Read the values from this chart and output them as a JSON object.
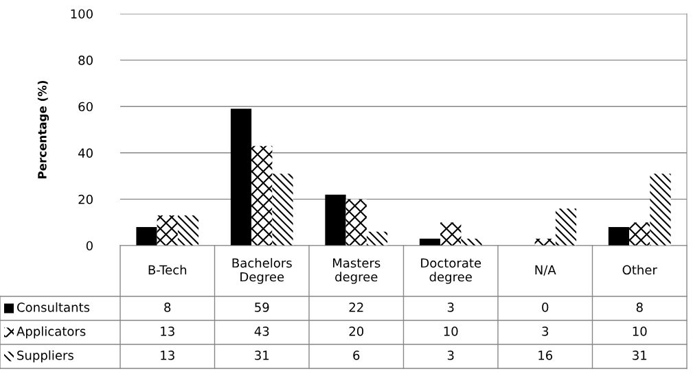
{
  "chart_data": {
    "type": "bar",
    "ylabel": "Percentage (%)",
    "categories": [
      "B-Tech",
      "Bachelors\nDegree",
      "Masters\ndegree",
      "Doctorate\ndegree",
      "N/A",
      "Other"
    ],
    "series": [
      {
        "name": "Consultants",
        "color": "#000000",
        "values": [
          8,
          59,
          22,
          3,
          0,
          8
        ]
      },
      {
        "name": "Applicators",
        "color": "#000000",
        "values": [
          13,
          43,
          20,
          10,
          3,
          10
        ]
      },
      {
        "name": "Suppliers",
        "color": "#000000",
        "values": [
          13,
          31,
          6,
          3,
          16,
          31
        ]
      }
    ],
    "ylim": [
      0,
      100
    ],
    "yticks": [
      0,
      20,
      40,
      60,
      80,
      100
    ],
    "grid": "y",
    "data_labels": true,
    "legend": "bottom left"
  }
}
